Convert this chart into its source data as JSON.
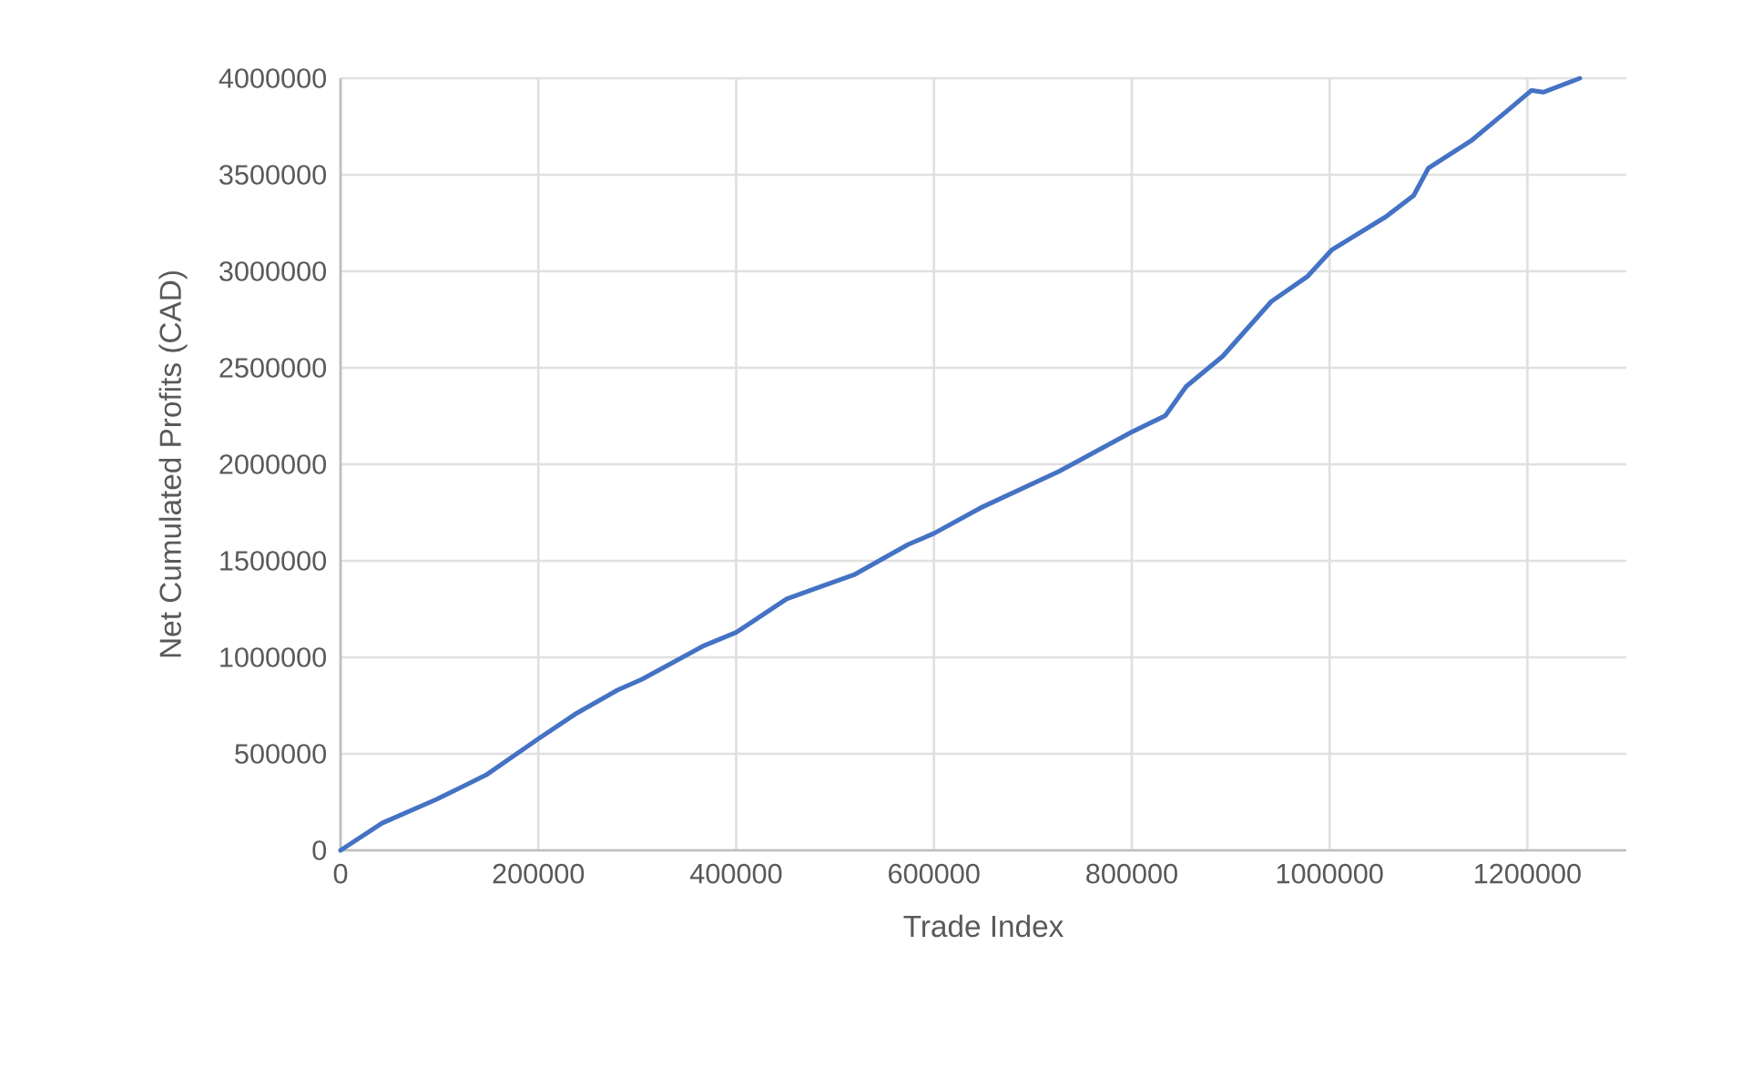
{
  "chart_data": {
    "type": "line",
    "xlabel": "Trade Index",
    "ylabel": "Net Cumulated Profits (CAD)",
    "xlim": [
      0,
      1300000
    ],
    "xticks": [
      0,
      200000,
      400000,
      600000,
      800000,
      1000000,
      1200000
    ],
    "ylim": [
      0,
      4000000
    ],
    "yticks": [
      0,
      500000,
      1000000,
      1500000,
      2000000,
      2500000,
      3000000,
      3500000,
      4000000
    ],
    "grid": true,
    "marker": "none",
    "line_style": "solid",
    "series": [
      {
        "color": "#4472c4",
        "x": [
          0,
          42000,
          97000,
          147000,
          200000,
          237000,
          280000,
          305000,
          366000,
          400000,
          414000,
          451000,
          488000,
          519000,
          574000,
          600000,
          647000,
          726000,
          800000,
          834000,
          855000,
          892000,
          941000,
          978000,
          1002000,
          1057000,
          1085000,
          1100000,
          1143000,
          1180000,
          1204000,
          1216000,
          1253000
        ],
        "values": [
          0,
          141000,
          264000,
          390000,
          578000,
          705000,
          830000,
          887000,
          1057000,
          1129000,
          1176000,
          1302000,
          1371000,
          1427000,
          1585000,
          1642000,
          1774000,
          1962000,
          2167000,
          2252000,
          2403000,
          2560000,
          2843000,
          2975000,
          3110000,
          3283000,
          3393000,
          3535000,
          3676000,
          3833000,
          3937000,
          3928000,
          4000000
        ]
      }
    ]
  }
}
